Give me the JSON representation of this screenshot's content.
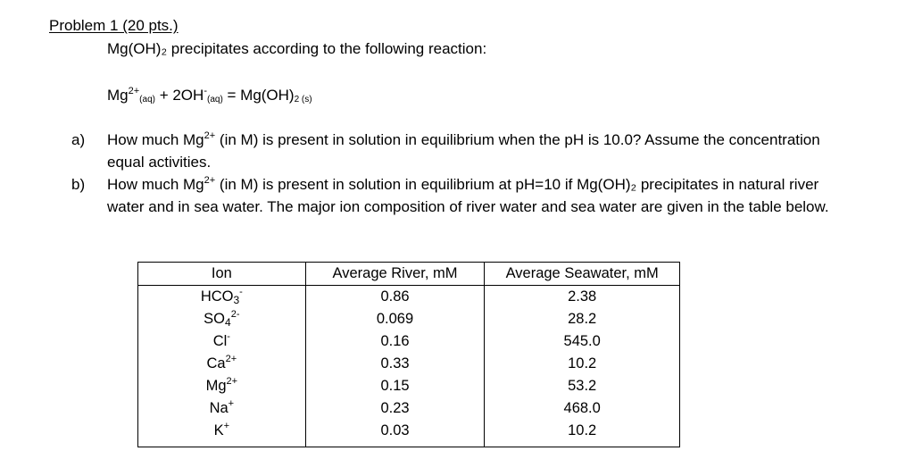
{
  "problem": {
    "title": "Problem 1 (20 pts.)",
    "intro": "Mg(OH)₂ precipitates according to the following reaction:",
    "equation": {
      "mg": "Mg",
      "mg_charge": "2+",
      "aq1": "(aq)",
      "plus": " + 2OH",
      "oh_charge": "-",
      "aq2": "(aq)",
      "equals": " = Mg(OH)",
      "two": "2",
      "s": " (s)"
    }
  },
  "questions": {
    "a": {
      "marker": "a)",
      "pre": "How much Mg",
      "charge": "2+",
      "post": " (in M) is present in solution in equilibrium when the pH is 10.0? Assume the concentration equal activities."
    },
    "b": {
      "marker": "b)",
      "pre": "How much Mg",
      "charge": "2+",
      "post": " (in M) is present in solution in equilibrium at pH=10 if Mg(OH)₂ precipitates in natural river water and in sea water. The major ion composition of river water and sea water are given in the table below."
    }
  },
  "table": {
    "headers": [
      "Ion",
      "Average River, mM",
      "Average Seawater, mM"
    ],
    "rows": [
      {
        "ion": "HCO",
        "ion_sub": "3",
        "ion_sup": "-",
        "river": "0.86",
        "sea": "2.38"
      },
      {
        "ion": "SO",
        "ion_sub": "4",
        "ion_sup": "2-",
        "river": "0.069",
        "sea": "28.2"
      },
      {
        "ion": "Cl",
        "ion_sub": "",
        "ion_sup": "-",
        "river": "0.16",
        "sea": "545.0"
      },
      {
        "ion": "Ca",
        "ion_sub": "",
        "ion_sup": "2+",
        "river": "0.33",
        "sea": "10.2"
      },
      {
        "ion": "Mg",
        "ion_sub": "",
        "ion_sup": "2+",
        "river": "0.15",
        "sea": "53.2"
      },
      {
        "ion": "Na",
        "ion_sub": "",
        "ion_sup": "+",
        "river": "0.23",
        "sea": "468.0"
      },
      {
        "ion": "K",
        "ion_sub": "",
        "ion_sup": "+",
        "river": "0.03",
        "sea": "10.2"
      }
    ]
  }
}
